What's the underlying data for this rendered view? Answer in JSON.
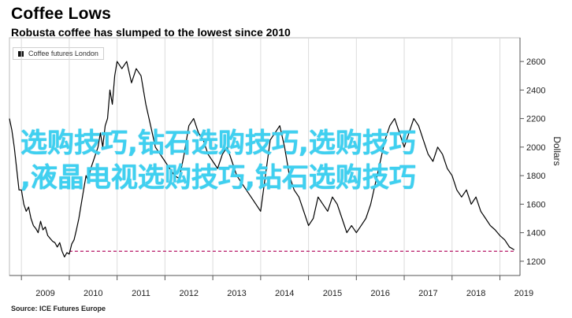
{
  "header": {
    "title": "Coffee Lows",
    "subtitle": "Robusta coffee has slumped to the lowest since 2010"
  },
  "legend": {
    "label": "Coffee futures London"
  },
  "source": "Source: ICE Futures Europe",
  "watermark": {
    "line1": "选购技巧,钻石选购技巧,选购技巧",
    "line2": ",液晶电视选购技巧,钻石选购技巧"
  },
  "colors": {
    "line": "#000000",
    "reference": "#c0387c",
    "grid": "#dcdcdc",
    "axis": "#555555",
    "watermark": "#3fd0f0"
  },
  "chart_data": {
    "type": "line",
    "title": "Coffee Lows",
    "subtitle": "Robusta coffee has slumped to the lowest since 2010",
    "xlabel": "",
    "ylabel": "Dollars",
    "y_axis_side": "right",
    "xlim": [
      2008.75,
      2019.42
    ],
    "ylim": [
      1100,
      2700
    ],
    "yticks": [
      1200,
      1400,
      1600,
      1800,
      2000,
      2200,
      2400,
      2600
    ],
    "xticks": [
      "2009",
      "2010",
      "2011",
      "2012",
      "2013",
      "2014",
      "2015",
      "2016",
      "2017",
      "2018",
      "2019"
    ],
    "reference_line": {
      "value": 1270,
      "from": 2010.0,
      "to": 2019.3,
      "style": "dashed"
    },
    "grid": "vertical",
    "series": [
      {
        "name": "Coffee futures London",
        "x": [
          2008.75,
          2008.8,
          2008.85,
          2008.9,
          2008.95,
          2009.0,
          2009.05,
          2009.1,
          2009.15,
          2009.2,
          2009.25,
          2009.3,
          2009.35,
          2009.4,
          2009.45,
          2009.5,
          2009.55,
          2009.6,
          2009.65,
          2009.7,
          2009.75,
          2009.8,
          2009.85,
          2009.9,
          2009.95,
          2010.0,
          2010.05,
          2010.1,
          2010.15,
          2010.2,
          2010.25,
          2010.3,
          2010.35,
          2010.4,
          2010.45,
          2010.5,
          2010.55,
          2010.6,
          2010.65,
          2010.7,
          2010.75,
          2010.8,
          2010.85,
          2010.9,
          2010.95,
          2011.0,
          2011.1,
          2011.2,
          2011.3,
          2011.4,
          2011.5,
          2011.6,
          2011.7,
          2011.8,
          2011.9,
          2012.0,
          2012.1,
          2012.2,
          2012.3,
          2012.4,
          2012.5,
          2012.6,
          2012.7,
          2012.8,
          2012.9,
          2013.0,
          2013.1,
          2013.2,
          2013.3,
          2013.4,
          2013.5,
          2013.6,
          2013.7,
          2013.8,
          2013.9,
          2014.0,
          2014.1,
          2014.2,
          2014.3,
          2014.4,
          2014.5,
          2014.6,
          2014.7,
          2014.8,
          2014.9,
          2015.0,
          2015.1,
          2015.2,
          2015.3,
          2015.4,
          2015.5,
          2015.6,
          2015.7,
          2015.8,
          2015.9,
          2016.0,
          2016.1,
          2016.2,
          2016.3,
          2016.4,
          2016.5,
          2016.6,
          2016.7,
          2016.8,
          2016.9,
          2017.0,
          2017.1,
          2017.2,
          2017.3,
          2017.4,
          2017.5,
          2017.6,
          2017.7,
          2017.8,
          2017.9,
          2018.0,
          2018.1,
          2018.2,
          2018.3,
          2018.4,
          2018.5,
          2018.6,
          2018.7,
          2018.8,
          2018.9,
          2019.0,
          2019.1,
          2019.2,
          2019.3
        ],
        "y": [
          2200,
          2120,
          2000,
          1850,
          1700,
          1700,
          1600,
          1550,
          1580,
          1500,
          1450,
          1430,
          1400,
          1480,
          1420,
          1440,
          1380,
          1360,
          1340,
          1330,
          1300,
          1330,
          1270,
          1230,
          1260,
          1250,
          1320,
          1350,
          1420,
          1500,
          1600,
          1700,
          1800,
          1760,
          1850,
          1900,
          1950,
          2000,
          2100,
          2000,
          2150,
          2200,
          2400,
          2300,
          2500,
          2600,
          2550,
          2600,
          2450,
          2550,
          2500,
          2300,
          2150,
          2000,
          1950,
          1900,
          1850,
          1800,
          1780,
          1950,
          2150,
          2200,
          2100,
          2050,
          1950,
          1900,
          1850,
          1950,
          2000,
          1900,
          1800,
          1750,
          1700,
          1650,
          1600,
          1550,
          1800,
          2050,
          2100,
          2150,
          2000,
          1800,
          1700,
          1650,
          1550,
          1450,
          1500,
          1650,
          1600,
          1550,
          1650,
          1600,
          1500,
          1400,
          1450,
          1400,
          1450,
          1500,
          1600,
          1750,
          1900,
          2050,
          2150,
          2200,
          2100,
          2000,
          2100,
          2200,
          2150,
          2050,
          1950,
          1900,
          2000,
          1950,
          1850,
          1800,
          1700,
          1650,
          1700,
          1600,
          1650,
          1550,
          1500,
          1450,
          1420,
          1380,
          1350,
          1300,
          1280
        ]
      }
    ]
  }
}
